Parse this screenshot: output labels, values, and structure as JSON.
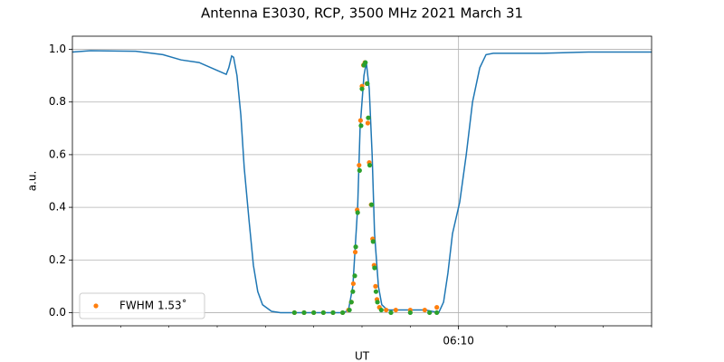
{
  "chart_data": {
    "type": "line",
    "title": "Antenna E3030, RCP, 3500 MHz 2021 March 31",
    "x_label": "UT",
    "y_label": "a.u.",
    "xlim": [
      2,
      14
    ],
    "ylim": [
      -0.05,
      1.05
    ],
    "xticks": [
      {
        "value": 10,
        "label": "06:10"
      }
    ],
    "xminorticks": [
      2,
      3,
      4,
      5,
      6,
      7,
      8,
      9,
      10,
      11,
      12,
      13,
      14
    ],
    "yticks": [
      {
        "value": 0,
        "label": "0.0"
      },
      0.2,
      0.4,
      0.6,
      0.8,
      {
        "value": 1,
        "label": "1.0"
      }
    ],
    "grid": true,
    "legend": "lower left",
    "series": [
      {
        "kind": "line",
        "color": "#1f77b4",
        "x": [
          2.0,
          2.375,
          3.3125,
          3.875,
          4.25,
          4.625,
          5.0,
          5.1875,
          5.24,
          5.3,
          5.34,
          5.41,
          5.49,
          5.56,
          5.66,
          5.75,
          5.84,
          5.94,
          6.125,
          6.31,
          6.69,
          7.625,
          7.72,
          7.81,
          7.91,
          7.96,
          8.04,
          8.09,
          8.15,
          8.21,
          8.26,
          8.34,
          8.41,
          8.525,
          9.31,
          9.59,
          9.69,
          9.78,
          9.875,
          10.025,
          10.16,
          10.29,
          10.44,
          10.57,
          10.72,
          11.75,
          12.69,
          14.0
        ],
        "values": [
          0.99,
          0.995,
          0.993,
          0.98,
          0.96,
          0.95,
          0.92,
          0.905,
          0.93,
          0.975,
          0.97,
          0.9,
          0.75,
          0.55,
          0.35,
          0.18,
          0.08,
          0.03,
          0.005,
          0.0,
          0.0,
          0.0,
          0.01,
          0.1,
          0.4,
          0.7,
          0.9,
          0.95,
          0.85,
          0.6,
          0.3,
          0.1,
          0.03,
          0.01,
          0.01,
          0.0,
          0.04,
          0.15,
          0.3,
          0.42,
          0.6,
          0.8,
          0.93,
          0.98,
          0.985,
          0.985,
          0.99,
          0.99
        ]
      },
      {
        "kind": "scatter",
        "name": "FWHM 1.53˚",
        "color": "#ff7f0e",
        "x": [
          6.6,
          6.8,
          7.0,
          7.2,
          7.4,
          7.6,
          7.72,
          7.78,
          7.82,
          7.86,
          7.9,
          7.94,
          7.97,
          8.0,
          8.03,
          8.06,
          8.1,
          8.12,
          8.15,
          8.19,
          8.22,
          8.25,
          8.28,
          8.31,
          8.36,
          8.5,
          8.7,
          9.0,
          9.3,
          9.55
        ],
        "values": [
          0,
          0,
          0,
          0,
          0,
          0,
          0.01,
          0.04,
          0.11,
          0.23,
          0.39,
          0.56,
          0.73,
          0.86,
          0.94,
          0.95,
          0.87,
          0.72,
          0.57,
          0.41,
          0.28,
          0.18,
          0.1,
          0.05,
          0.02,
          0.01,
          0.01,
          0.01,
          0.01,
          0.02
        ]
      },
      {
        "kind": "scatter",
        "color": "#2ca02c",
        "x": [
          6.6,
          6.8,
          7.0,
          7.2,
          7.4,
          7.6,
          7.74,
          7.78,
          7.81,
          7.85,
          7.87,
          7.91,
          7.95,
          7.98,
          8.0,
          8.04,
          8.07,
          8.11,
          8.13,
          8.16,
          8.2,
          8.23,
          8.26,
          8.29,
          8.32,
          8.4,
          8.6,
          9.0,
          9.4,
          9.55
        ],
        "values": [
          0,
          0,
          0,
          0,
          0,
          0,
          0.01,
          0.04,
          0.08,
          0.14,
          0.25,
          0.38,
          0.54,
          0.71,
          0.85,
          0.94,
          0.95,
          0.87,
          0.74,
          0.56,
          0.41,
          0.27,
          0.17,
          0.08,
          0.04,
          0.01,
          0,
          0,
          0,
          0
        ]
      }
    ]
  }
}
